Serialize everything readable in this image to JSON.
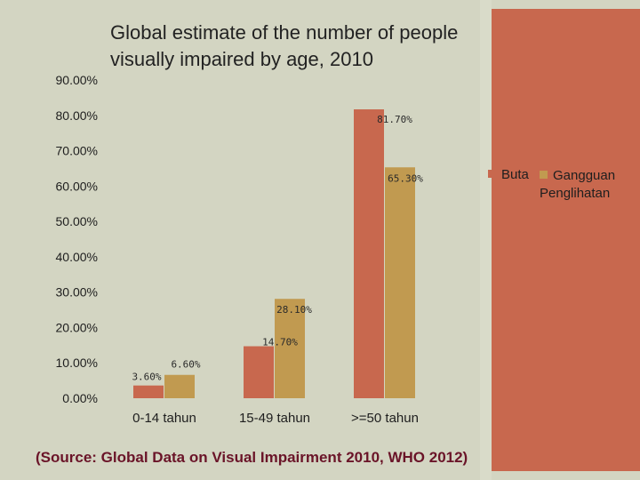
{
  "chart_data": {
    "type": "bar",
    "title": "Global estimate of the number of people\nvisually  impaired by age, 2010",
    "categories": [
      "0-14 tahun",
      "15-49 tahun",
      ">=50 tahun"
    ],
    "series": [
      {
        "name": "Buta",
        "values": [
          3.6,
          14.7,
          81.7
        ],
        "labels": [
          "3.60%",
          "14.70%",
          "81.70%"
        ],
        "color": "#c8684e"
      },
      {
        "name": "Gangguan Penglihatan",
        "values": [
          6.6,
          28.1,
          65.3
        ],
        "labels": [
          "6.60%",
          "28.10%",
          "65.30%"
        ],
        "color": "#c19a50"
      }
    ],
    "yticks": [
      "0.00%",
      "10.00%",
      "20.00%",
      "30.00%",
      "40.00%",
      "50.00%",
      "60.00%",
      "70.00%",
      "80.00%",
      "90.00%"
    ],
    "ylim": [
      0,
      90
    ],
    "xlabel": "",
    "ylabel": "",
    "grid": false,
    "legend_position": "right"
  },
  "source": "(Source: Global Data on Visual Impairment 2010, WHO 2012)",
  "colors": {
    "background": "#d3d5c2",
    "accent_panel": "#c8684e",
    "source_text": "#6a1428"
  }
}
